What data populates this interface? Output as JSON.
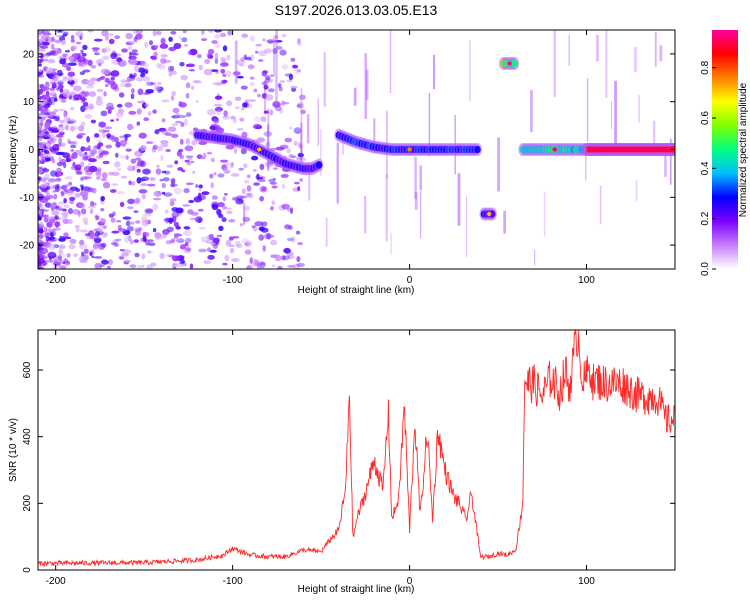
{
  "title": "S197.2026.013.03.05.E13",
  "chart_data": [
    {
      "type": "heatmap",
      "name": "spectrogram",
      "xlabel": "Height of straight line (km)",
      "ylabel": "Frequency (Hz)",
      "xlim": [
        -210,
        150
      ],
      "ylim": [
        -25,
        25
      ],
      "xticks": [
        -200,
        -100,
        0,
        100
      ],
      "yticks": [
        -20,
        -10,
        0,
        10,
        20
      ],
      "colorbar": {
        "label": "Normalized spectral amplitude",
        "range": [
          0,
          0.95
        ],
        "ticks": [
          "0.0",
          "0.2",
          "0.4",
          "0.6",
          "0.8"
        ],
        "colormap": [
          "#ffffff",
          "#c77dff",
          "#7b00ff",
          "#0000ff",
          "#00bfff",
          "#00ff80",
          "#80ff00",
          "#ffff00",
          "#ff8000",
          "#ff0000",
          "#ff00a0"
        ]
      },
      "ridges": [
        {
          "x": [
            -120,
            -110,
            -100,
            -90,
            -80,
            -70,
            -60,
            -55,
            -50
          ],
          "y": [
            3,
            2.5,
            2,
            1,
            -1,
            -3,
            -4,
            -4,
            -3
          ],
          "amplitude": 0.3
        },
        {
          "x": [
            -40,
            -30,
            -20,
            -10,
            0,
            10,
            20,
            30,
            40
          ],
          "y": [
            3,
            1.5,
            0.5,
            0,
            0,
            0,
            0,
            0,
            0
          ],
          "amplitude": 0.35
        },
        {
          "x": [
            42,
            48
          ],
          "y": [
            -13.5,
            -13.5
          ],
          "amplitude": 0.3
        },
        {
          "x": [
            53,
            60
          ],
          "y": [
            18,
            18
          ],
          "amplitude": 0.6
        },
        {
          "x": [
            64,
            70,
            80,
            90,
            100
          ],
          "y": [
            0,
            0,
            0,
            0,
            0
          ],
          "amplitude": 0.5
        },
        {
          "x": [
            100,
            150
          ],
          "y": [
            0,
            0
          ],
          "amplitude": 0.95
        }
      ]
    },
    {
      "type": "line",
      "name": "snr",
      "xlabel": "Height of straight line (km)",
      "ylabel": "SNR (10 * v/v)",
      "xlim": [
        -210,
        150
      ],
      "ylim": [
        0,
        720
      ],
      "xticks": [
        -200,
        -100,
        0,
        100
      ],
      "yticks": [
        0,
        200,
        400,
        600
      ],
      "color": "#ff2a2a",
      "series": [
        {
          "name": "SNR",
          "x": [
            -210,
            -150,
            -120,
            -105,
            -100,
            -90,
            -80,
            -70,
            -60,
            -50,
            -45,
            -40,
            -36,
            -34,
            -33,
            -32,
            -30,
            -25,
            -20,
            -15,
            -12,
            -10,
            -6,
            -3,
            0,
            3,
            6,
            10,
            13,
            16,
            20,
            25,
            28,
            32,
            35,
            38,
            40,
            45,
            50,
            55,
            60,
            62,
            64,
            65,
            66,
            70,
            75,
            80,
            85,
            88,
            90,
            95,
            98,
            100,
            102,
            104,
            106,
            110,
            120,
            130,
            140,
            145,
            150
          ],
          "y": [
            20,
            22,
            30,
            45,
            65,
            45,
            40,
            40,
            60,
            55,
            90,
            120,
            250,
            550,
            300,
            90,
            150,
            230,
            330,
            240,
            480,
            150,
            220,
            500,
            120,
            450,
            160,
            420,
            150,
            420,
            300,
            220,
            200,
            150,
            230,
            120,
            40,
            40,
            50,
            45,
            60,
            130,
            200,
            580,
            560,
            560,
            520,
            580,
            530,
            600,
            540,
            720,
            560,
            580,
            610,
            560,
            570,
            560,
            560,
            520,
            520,
            450,
            450
          ]
        }
      ]
    }
  ]
}
